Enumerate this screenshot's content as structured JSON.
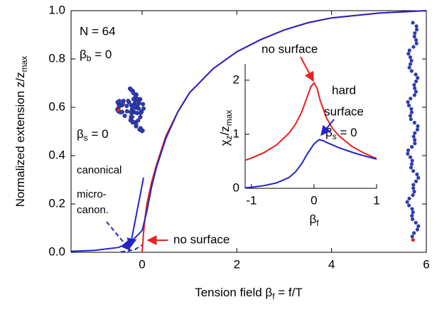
{
  "chart_data": [
    {
      "type": "line",
      "xlabel": [
        "Tension field β",
        "f",
        " = f/T"
      ],
      "ylabel": [
        "Normalized extension z/z",
        "max"
      ],
      "xlim": [
        -1.5,
        6
      ],
      "ylim": [
        0,
        1
      ],
      "xticks": [
        0,
        2,
        4,
        6
      ],
      "yticks": [
        {
          "value": 0,
          "label": "0.0"
        },
        {
          "value": 0.2,
          "label": "0.2"
        },
        {
          "value": 0.4,
          "label": "0.4"
        },
        {
          "value": 0.6,
          "label": "0.6"
        },
        {
          "value": 0.8,
          "label": "0.8"
        },
        {
          "value": 1,
          "label": "1.0"
        }
      ],
      "series": [
        {
          "color": "#e8201e",
          "dash": false,
          "x": [
            0,
            0.03,
            0.06,
            0.1,
            0.2,
            0.3,
            0.5,
            0.75,
            1,
            1.5,
            2,
            2.5,
            3,
            3.5,
            4,
            5,
            6
          ],
          "values": [
            0,
            0.08,
            0.14,
            0.2,
            0.29,
            0.36,
            0.48,
            0.58,
            0.66,
            0.76,
            0.83,
            0.88,
            0.92,
            0.95,
            0.97,
            0.99,
            1.0
          ]
        },
        {
          "color": "#2424c8",
          "dash": false,
          "x": [
            -1.5,
            -1,
            -0.5,
            -0.25,
            0,
            0.1,
            0.2,
            0.3,
            0.5,
            0.75,
            1,
            1.5,
            2,
            2.5,
            3,
            3.5,
            4,
            5,
            6
          ],
          "values": [
            0.004,
            0.008,
            0.02,
            0.04,
            0.09,
            0.17,
            0.27,
            0.35,
            0.47,
            0.58,
            0.66,
            0.76,
            0.83,
            0.88,
            0.92,
            0.95,
            0.97,
            0.99,
            1.0
          ]
        },
        {
          "color": "#2424c8",
          "dash": true,
          "x": [
            -0.45,
            -0.3,
            -0.15,
            0
          ],
          "values": [
            0.002,
            0.005,
            0.012,
            0.03
          ]
        }
      ],
      "annotations": {
        "n": "N = 64",
        "beta_b": [
          "β",
          "b",
          " = 0"
        ],
        "beta_s": [
          "β",
          "s",
          " = 0"
        ],
        "canonical": "canonical",
        "micro": [
          "micro-",
          "canon."
        ],
        "no_surface": "no surface"
      }
    },
    {
      "type": "line",
      "xlabel": [
        "β",
        "f"
      ],
      "ylabel": [
        "χ",
        "z",
        "/z",
        "max"
      ],
      "xlim": [
        -1.1,
        1
      ],
      "ylim": [
        0,
        2.3
      ],
      "xticks": [
        -1,
        0,
        1
      ],
      "yticks": [
        0,
        1,
        2
      ],
      "series": [
        {
          "color": "#e8201e",
          "dash": false,
          "x": [
            -1.1,
            -1,
            -0.8,
            -0.6,
            -0.4,
            -0.3,
            -0.2,
            -0.1,
            -0.05,
            0,
            0.05,
            0.1,
            0.2,
            0.3,
            0.4,
            0.6,
            0.8,
            1
          ],
          "values": [
            0.52,
            0.56,
            0.66,
            0.8,
            1.02,
            1.18,
            1.4,
            1.72,
            1.88,
            1.95,
            1.85,
            1.62,
            1.3,
            1.1,
            0.97,
            0.78,
            0.65,
            0.55
          ]
        },
        {
          "color": "#2424c8",
          "dash": false,
          "x": [
            -1.1,
            -1,
            -0.8,
            -0.6,
            -0.4,
            -0.3,
            -0.2,
            -0.1,
            0,
            0.08,
            0.15,
            0.2,
            0.3,
            0.4,
            0.6,
            0.8,
            1
          ],
          "values": [
            0.01,
            0.02,
            0.05,
            0.1,
            0.2,
            0.3,
            0.45,
            0.65,
            0.82,
            0.9,
            0.88,
            0.85,
            0.8,
            0.75,
            0.67,
            0.6,
            0.54
          ]
        }
      ],
      "annotations": {
        "no_surface": "no surface",
        "hard": [
          "hard",
          "surface"
        ],
        "beta_s": [
          "β",
          "s",
          " = 0"
        ]
      }
    }
  ]
}
